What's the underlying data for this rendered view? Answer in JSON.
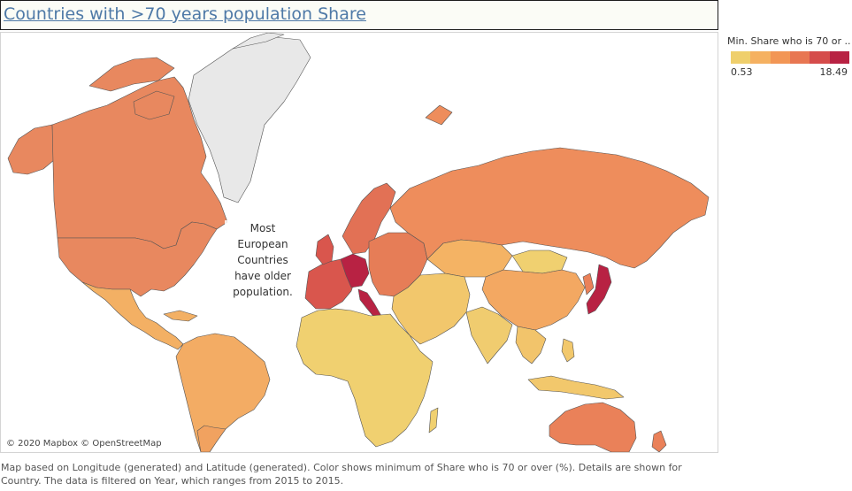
{
  "title": "Countries with >70 years population Share",
  "legend": {
    "title": "Min. Share who is 70 or ..",
    "min_label": "0.53",
    "max_label": "18.49",
    "colors": [
      "#efcf6c",
      "#f5b161",
      "#f29655",
      "#e87652",
      "#d54c4b",
      "#b82243"
    ]
  },
  "map": {
    "background": "#ffffff",
    "no_data_color": "#e8e8e8",
    "annotation": "Most European Countries have older population.",
    "attribution": "© 2020 Mapbox © OpenStreetMap",
    "regions": [
      {
        "name": "Greenland",
        "color": "#e8e8e8"
      },
      {
        "name": "Canada",
        "color": "#e8885f"
      },
      {
        "name": "United States",
        "color": "#e8885f"
      },
      {
        "name": "Alaska",
        "color": "#e8885f"
      },
      {
        "name": "Mexico & Central America",
        "color": "#f3b064"
      },
      {
        "name": "South America",
        "color": "#f3ac64"
      },
      {
        "name": "Argentina & Chile",
        "color": "#f1a260"
      },
      {
        "name": "Western Europe",
        "color": "#d9564d"
      },
      {
        "name": "Germany & Italy",
        "color": "#b82243"
      },
      {
        "name": "Scandinavia",
        "color": "#e27155"
      },
      {
        "name": "Eastern Europe",
        "color": "#e67d57"
      },
      {
        "name": "Russia",
        "color": "#ee8d5c"
      },
      {
        "name": "Kazakhstan",
        "color": "#f4b364"
      },
      {
        "name": "Mongolia",
        "color": "#f0d070"
      },
      {
        "name": "China",
        "color": "#f3a862"
      },
      {
        "name": "Middle East",
        "color": "#f2c76c"
      },
      {
        "name": "India",
        "color": "#f0cc6f"
      },
      {
        "name": "Southeast Asia",
        "color": "#f2c46b"
      },
      {
        "name": "Japan",
        "color": "#b82243"
      },
      {
        "name": "Korea",
        "color": "#ea8159"
      },
      {
        "name": "Africa",
        "color": "#f0d070"
      },
      {
        "name": "Australia",
        "color": "#ea8159"
      },
      {
        "name": "New Zealand",
        "color": "#ea8159"
      },
      {
        "name": "Indonesia & Philippines",
        "color": "#f2c86c"
      }
    ]
  },
  "footnote": "Map based on Longitude (generated) and Latitude (generated).  Color shows minimum of Share who is 70 or over (%).  Details are shown for Country. The data is filtered on Year, which ranges from 2015 to 2015."
}
